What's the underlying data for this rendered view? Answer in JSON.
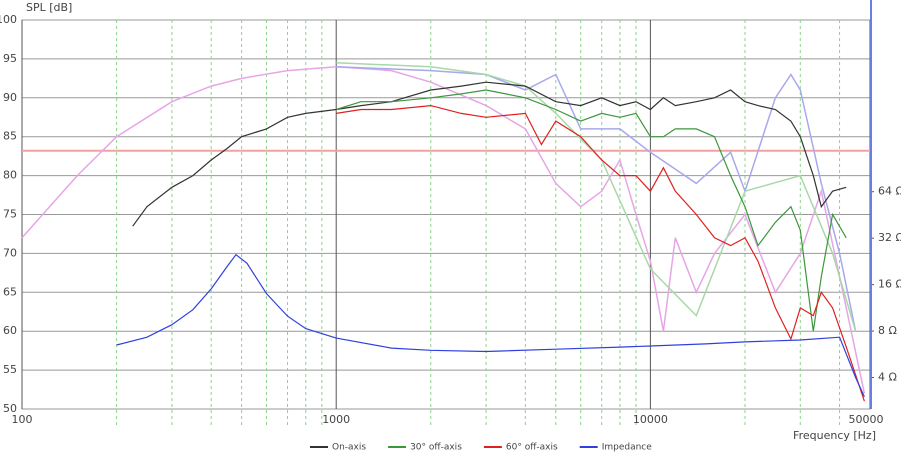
{
  "chart_data": {
    "type": "line",
    "y_label": "SPL [dB]",
    "x_label": "Frequency [Hz]",
    "xscale": "log",
    "xlim": [
      100,
      50000
    ],
    "xticks": [
      100,
      1000,
      10000,
      50000
    ],
    "xminor_ticks": [
      200,
      300,
      400,
      500,
      600,
      700,
      800,
      900,
      2000,
      3000,
      4000,
      5000,
      6000,
      7000,
      8000,
      9000,
      20000,
      30000,
      40000
    ],
    "ylim": [
      50,
      100
    ],
    "yticks": [
      50,
      55,
      60,
      65,
      70,
      75,
      80,
      85,
      90,
      95,
      100
    ],
    "y2scale": "log",
    "y2lim": [
      2.5,
      830
    ],
    "y2ticks": [
      {
        "value": 4,
        "label": "4 Ω"
      },
      {
        "value": 8,
        "label": "8 Ω"
      },
      {
        "value": 16,
        "label": "16 Ω"
      },
      {
        "value": 32,
        "label": "32 Ω"
      },
      {
        "value": 64,
        "label": "64 Ω"
      }
    ],
    "grid": true,
    "hline": {
      "value": 83.2,
      "color": "#f4a0a0"
    },
    "series": [
      {
        "color": "#e6a6e6",
        "x": [
          100,
          150,
          200,
          300,
          400,
          500,
          700,
          1000,
          1500,
          2000,
          3000,
          4000,
          5000,
          6000,
          7000,
          8000,
          9000,
          10000,
          11000,
          12000,
          14000,
          16000,
          20000,
          25000,
          30000,
          35000,
          40000,
          48000
        ],
        "values": [
          72,
          80,
          85,
          89.5,
          91.5,
          92.5,
          93.5,
          94,
          93.5,
          92,
          89,
          86,
          79,
          76,
          78,
          82,
          75,
          69,
          60,
          72,
          65,
          70,
          75,
          65,
          70,
          78,
          67,
          52
        ]
      },
      {
        "color": "#a8a8ec",
        "x": [
          1000,
          2000,
          3000,
          4000,
          5000,
          6000,
          8000,
          10000,
          14000,
          18000,
          20000,
          25000,
          28000,
          30000,
          35000,
          40000,
          45000
        ],
        "values": [
          94,
          93.5,
          93,
          91,
          93,
          86,
          86,
          83,
          79,
          83,
          78,
          90,
          93,
          91,
          79,
          70,
          60
        ]
      },
      {
        "color": "#a8d8a8",
        "x": [
          1000,
          2000,
          3000,
          4000,
          5000,
          7000,
          10000,
          14000,
          20000,
          30000,
          38000,
          45000
        ],
        "values": [
          94.5,
          94,
          93,
          91.5,
          88,
          82,
          68,
          62,
          78,
          80,
          70,
          60
        ]
      },
      {
        "name": "On-axis",
        "color": "#333333",
        "x": [
          225,
          250,
          300,
          350,
          400,
          450,
          500,
          600,
          700,
          800,
          1000,
          1200,
          1500,
          2000,
          2500,
          3000,
          4000,
          5000,
          6000,
          7000,
          8000,
          9000,
          10000,
          11000,
          12000,
          14000,
          16000,
          18000,
          20000,
          22000,
          25000,
          28000,
          30000,
          33000,
          35000,
          38000,
          42000
        ],
        "values": [
          73.5,
          76,
          78.5,
          80,
          82,
          83.5,
          85,
          86,
          87.5,
          88,
          88.5,
          89,
          89.5,
          91,
          91.5,
          92,
          91.5,
          89.5,
          89,
          90,
          89,
          89.5,
          88.5,
          90,
          89,
          89.5,
          90,
          91,
          89.5,
          89,
          88.5,
          87,
          85,
          80,
          76,
          78,
          78.5
        ]
      },
      {
        "name": "30° off-axis",
        "color": "#3c963c",
        "x": [
          1000,
          1200,
          1500,
          2000,
          2500,
          3000,
          4000,
          5000,
          6000,
          7000,
          8000,
          9000,
          10000,
          11000,
          12000,
          14000,
          16000,
          18000,
          20000,
          22000,
          25000,
          28000,
          30000,
          33000,
          35000,
          38000,
          42000
        ],
        "values": [
          88.5,
          89.5,
          89.5,
          90,
          90.5,
          91,
          90,
          88.5,
          87,
          88,
          87.5,
          88,
          85,
          85,
          86,
          86,
          85,
          80,
          76,
          71,
          74,
          76,
          73,
          60,
          67,
          75,
          72
        ]
      },
      {
        "name": "60° off-axis",
        "color": "#e02020",
        "x": [
          1000,
          1200,
          1500,
          2000,
          2500,
          3000,
          4000,
          4500,
          5000,
          6000,
          7000,
          8000,
          9000,
          10000,
          11000,
          12000,
          14000,
          16000,
          18000,
          20000,
          22000,
          25000,
          28000,
          30000,
          33000,
          35000,
          38000,
          42000,
          48000
        ],
        "values": [
          88,
          88.5,
          88.5,
          89,
          88,
          87.5,
          88,
          84,
          87,
          85,
          82,
          80,
          80,
          78,
          81,
          78,
          75,
          72,
          71,
          72,
          69,
          63,
          59,
          63,
          62,
          65,
          63,
          58,
          51
        ]
      },
      {
        "name": "Impedance",
        "color": "#3040e0",
        "axis": "y2",
        "x": [
          200,
          250,
          300,
          350,
          400,
          450,
          480,
          520,
          600,
          700,
          800,
          1000,
          1500,
          2000,
          3000,
          5000,
          8000,
          10000,
          15000,
          20000,
          30000,
          40000,
          45000,
          48000
        ],
        "values": [
          6.5,
          7.3,
          8.8,
          11,
          15,
          21,
          25,
          22,
          14,
          10,
          8.3,
          7.2,
          6.2,
          6,
          5.9,
          6.1,
          6.3,
          6.4,
          6.6,
          6.8,
          7,
          7.3,
          4,
          3
        ]
      }
    ]
  }
}
